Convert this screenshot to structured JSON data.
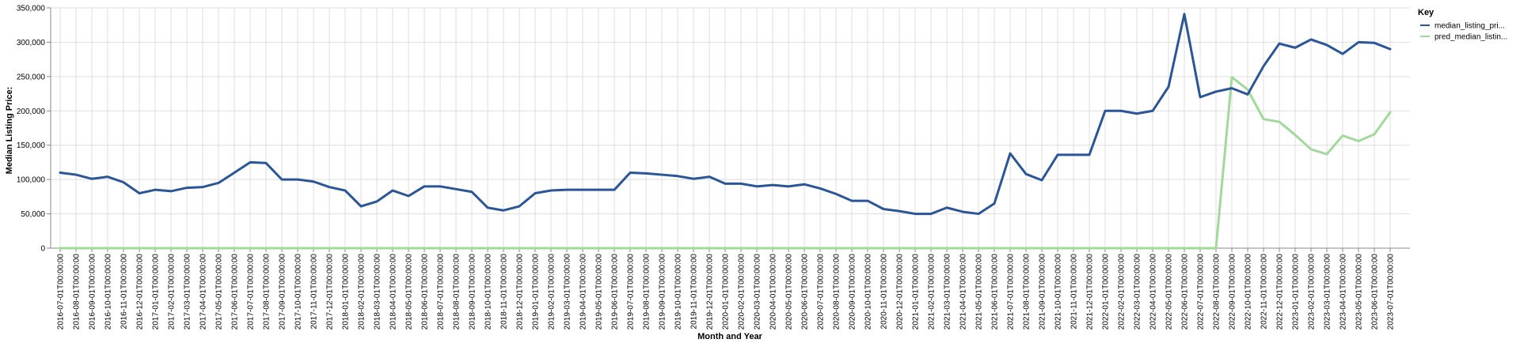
{
  "chart_data": {
    "type": "line",
    "title": "",
    "xlabel": "Month and Year",
    "ylabel": "Median Listing Price:",
    "ylim": [
      0,
      350000
    ],
    "yticks": [
      "0",
      "50,000",
      "100,000",
      "150,000",
      "200,000",
      "250,000",
      "300,000",
      "350,000"
    ],
    "ytick_values": [
      0,
      50000,
      100000,
      150000,
      200000,
      250000,
      300000,
      350000
    ],
    "grid": true,
    "legend_position": "right",
    "x": [
      "2016-07-01T00:00:00",
      "2016-08-01T00:00:00",
      "2016-09-01T00:00:00",
      "2016-10-01T00:00:00",
      "2016-11-01T00:00:00",
      "2016-12-01T00:00:00",
      "2017-01-01T00:00:00",
      "2017-02-01T00:00:00",
      "2017-03-01T00:00:00",
      "2017-04-01T00:00:00",
      "2017-05-01T00:00:00",
      "2017-06-01T00:00:00",
      "2017-07-01T00:00:00",
      "2017-08-01T00:00:00",
      "2017-09-01T00:00:00",
      "2017-10-01T00:00:00",
      "2017-11-01T00:00:00",
      "2017-12-01T00:00:00",
      "2018-01-01T00:00:00",
      "2018-02-01T00:00:00",
      "2018-03-01T00:00:00",
      "2018-04-01T00:00:00",
      "2018-05-01T00:00:00",
      "2018-06-01T00:00:00",
      "2018-07-01T00:00:00",
      "2018-08-01T00:00:00",
      "2018-09-01T00:00:00",
      "2018-10-01T00:00:00",
      "2018-11-01T00:00:00",
      "2018-12-01T00:00:00",
      "2019-01-01T00:00:00",
      "2019-02-01T00:00:00",
      "2019-03-01T00:00:00",
      "2019-04-01T00:00:00",
      "2019-05-01T00:00:00",
      "2019-06-01T00:00:00",
      "2019-07-01T00:00:00",
      "2019-08-01T00:00:00",
      "2019-09-01T00:00:00",
      "2019-10-01T00:00:00",
      "2019-11-01T00:00:00",
      "2019-12-01T00:00:00",
      "2020-01-01T00:00:00",
      "2020-02-01T00:00:00",
      "2020-03-01T00:00:00",
      "2020-04-01T00:00:00",
      "2020-05-01T00:00:00",
      "2020-06-01T00:00:00",
      "2020-07-01T00:00:00",
      "2020-08-01T00:00:00",
      "2020-09-01T00:00:00",
      "2020-10-01T00:00:00",
      "2020-11-01T00:00:00",
      "2020-12-01T00:00:00",
      "2021-01-01T00:00:00",
      "2021-02-01T00:00:00",
      "2021-03-01T00:00:00",
      "2021-04-01T00:00:00",
      "2021-05-01T00:00:00",
      "2021-06-01T00:00:00",
      "2021-07-01T00:00:00",
      "2021-08-01T00:00:00",
      "2021-09-01T00:00:00",
      "2021-10-01T00:00:00",
      "2021-11-01T00:00:00",
      "2021-12-01T00:00:00",
      "2022-01-01T00:00:00",
      "2022-02-01T00:00:00",
      "2022-03-01T00:00:00",
      "2022-04-01T00:00:00",
      "2022-05-01T00:00:00",
      "2022-06-01T00:00:00",
      "2022-07-01T00:00:00",
      "2022-08-01T00:00:00",
      "2022-09-01T00:00:00",
      "2022-10-01T00:00:00",
      "2022-11-01T00:00:00",
      "2022-12-01T00:00:00",
      "2023-01-01T00:00:00",
      "2023-02-01T00:00:00",
      "2023-03-01T00:00:00",
      "2023-04-01T00:00:00",
      "2023-05-01T00:00:00",
      "2023-06-01T00:00:00",
      "2023-07-01T00:00:00"
    ],
    "series": [
      {
        "name": "median_listing_pri...",
        "color": "#2a5599",
        "values": [
          110000,
          107000,
          101000,
          104000,
          96000,
          80000,
          85000,
          83000,
          88000,
          89000,
          95000,
          110000,
          125000,
          124000,
          100000,
          100000,
          97000,
          89000,
          84000,
          61000,
          68000,
          84000,
          76000,
          90000,
          90000,
          86000,
          82000,
          59000,
          55000,
          61000,
          80000,
          84000,
          85000,
          85000,
          85000,
          85000,
          110000,
          109000,
          107000,
          105000,
          101000,
          104000,
          94000,
          94000,
          90000,
          92000,
          90000,
          93000,
          87000,
          79000,
          69000,
          69000,
          57000,
          54000,
          50000,
          50000,
          59000,
          53000,
          50000,
          65000,
          138000,
          108000,
          99000,
          136000,
          136000,
          136000,
          200000,
          200000,
          196000,
          200000,
          235000,
          341000,
          220000,
          228000,
          233000,
          224000,
          265000,
          298000,
          292000,
          304000,
          296000,
          283000,
          300000,
          299000,
          290000
        ]
      },
      {
        "name": "pred_median_listin...",
        "color": "#a0d99a",
        "values": [
          0,
          0,
          0,
          0,
          0,
          0,
          0,
          0,
          0,
          0,
          0,
          0,
          0,
          0,
          0,
          0,
          0,
          0,
          0,
          0,
          0,
          0,
          0,
          0,
          0,
          0,
          0,
          0,
          0,
          0,
          0,
          0,
          0,
          0,
          0,
          0,
          0,
          0,
          0,
          0,
          0,
          0,
          0,
          0,
          0,
          0,
          0,
          0,
          0,
          0,
          0,
          0,
          0,
          0,
          0,
          0,
          0,
          0,
          0,
          0,
          0,
          0,
          0,
          0,
          0,
          0,
          0,
          0,
          0,
          0,
          0,
          0,
          0,
          0,
          249000,
          231000,
          188000,
          184000,
          165000,
          144000,
          137000,
          164000,
          156000,
          166000,
          198000
        ]
      }
    ]
  },
  "legend": {
    "title": "Key"
  }
}
